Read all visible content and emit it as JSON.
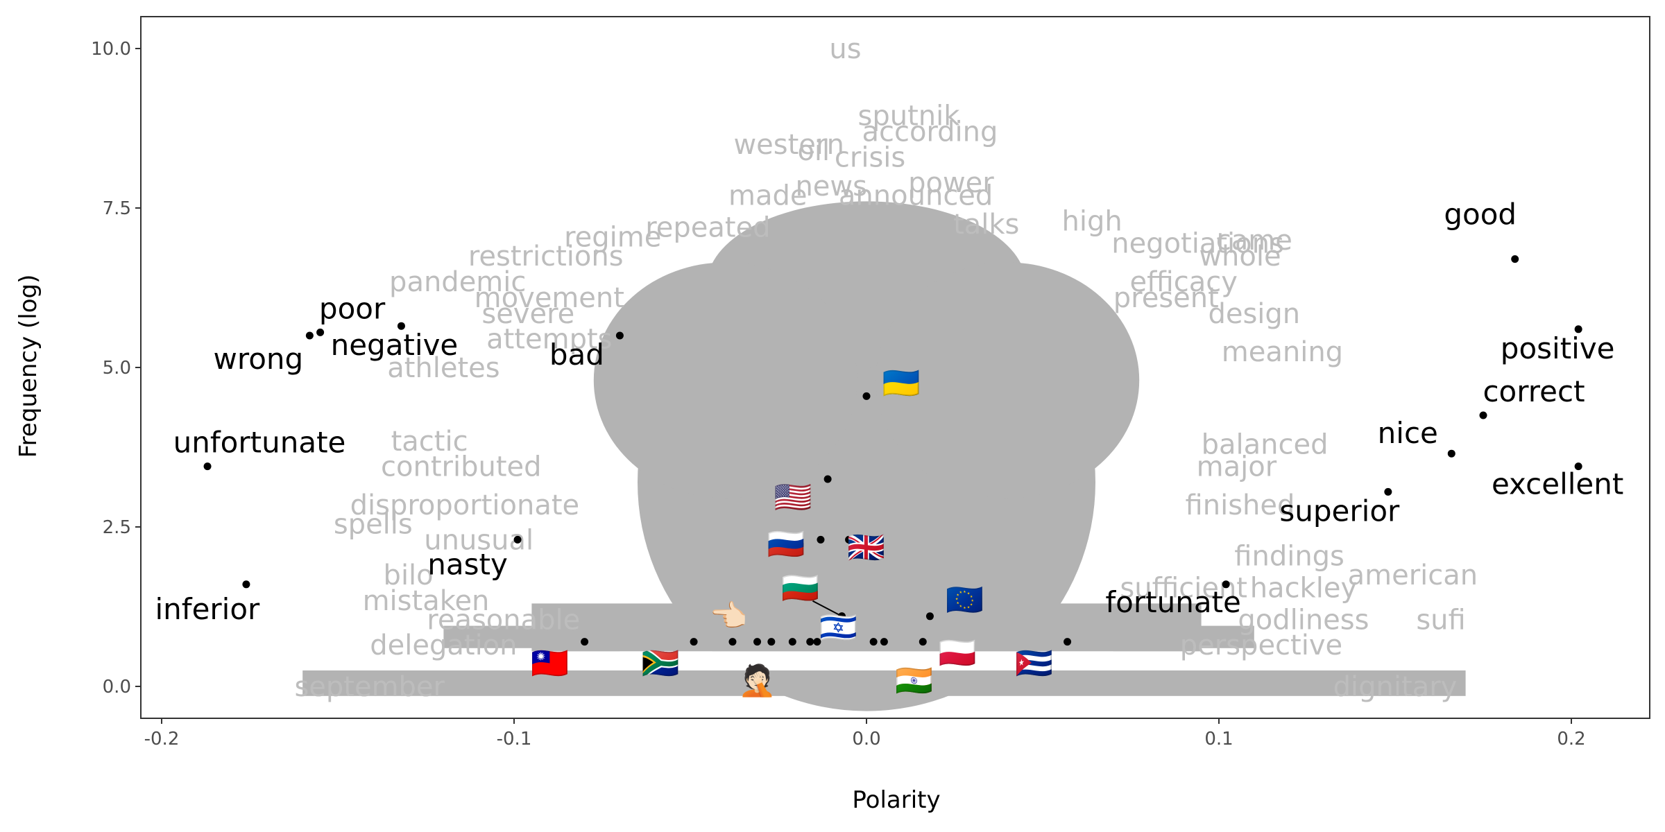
{
  "chart_data": {
    "type": "scatter",
    "xlabel": "Polarity",
    "ylabel": "Frequency (log)",
    "xlim": [
      -0.2,
      0.2
    ],
    "ylim": [
      0,
      10
    ],
    "x_ticks": [
      -0.2,
      -0.1,
      0.0,
      0.1,
      0.2
    ],
    "x_tick_labels": [
      "-0.2",
      "-0.1",
      "0.0",
      "0.1",
      "0.2"
    ],
    "y_ticks": [
      0,
      2.5,
      5,
      7.5,
      10
    ],
    "y_tick_labels": [
      "0.0",
      "2.5",
      "5.0",
      "7.5",
      "10.0"
    ],
    "grid": false,
    "colors": {
      "background_words": "#bdbdbd",
      "key_words": "#000000",
      "points": "#000000",
      "panel_border": "#333333"
    },
    "labeled_points": [
      {
        "label": "good",
        "x": 0.184,
        "y": 6.7
      },
      {
        "label": "positive",
        "x": 0.202,
        "y": 5.6
      },
      {
        "label": "correct",
        "x": 0.175,
        "y": 4.25
      },
      {
        "label": "nice",
        "x": 0.166,
        "y": 3.65
      },
      {
        "label": "excellent",
        "x": 0.202,
        "y": 3.45
      },
      {
        "label": "superior",
        "x": 0.148,
        "y": 3.05
      },
      {
        "label": "fortunate",
        "x": 0.102,
        "y": 1.6
      },
      {
        "label": "poor",
        "x": -0.155,
        "y": 5.55
      },
      {
        "label": "wrong",
        "x": -0.158,
        "y": 5.5
      },
      {
        "label": "negative",
        "x": -0.132,
        "y": 5.65
      },
      {
        "label": "bad",
        "x": -0.07,
        "y": 5.5
      },
      {
        "label": "unfortunate",
        "x": -0.187,
        "y": 3.45
      },
      {
        "label": "nasty",
        "x": -0.099,
        "y": 2.3
      },
      {
        "label": "inferior",
        "x": -0.176,
        "y": 1.6
      }
    ],
    "flag_points": [
      {
        "icon": "🇺🇦",
        "x": 0.0,
        "y": 4.55
      },
      {
        "icon": "🇺🇸",
        "x": -0.011,
        "y": 3.25
      },
      {
        "icon": "🇷🇺",
        "x": -0.013,
        "y": 2.3
      },
      {
        "icon": "🇬🇧",
        "x": -0.005,
        "y": 2.3
      },
      {
        "icon": "🇧🇬",
        "x": -0.007,
        "y": 1.1
      },
      {
        "icon": "🇮🇱",
        "x": -0.007,
        "y": 1.1
      },
      {
        "icon": "🇪🇺",
        "x": 0.018,
        "y": 1.1
      },
      {
        "icon": "🇵🇱",
        "x": 0.016,
        "y": 0.7
      },
      {
        "icon": "🇨🇺",
        "x": 0.057,
        "y": 0.7
      },
      {
        "icon": "🇹🇼",
        "x": -0.08,
        "y": 0.7
      },
      {
        "icon": "🇿🇦",
        "x": -0.049,
        "y": 0.7
      },
      {
        "icon": "👈🏻",
        "x": -0.038,
        "y": 0.7
      },
      {
        "icon": "🤦🏻",
        "x": -0.031,
        "y": 0.7
      },
      {
        "icon": "🇮🇳",
        "x": 0.005,
        "y": 0.7
      }
    ],
    "unlabeled_points": [
      {
        "x": -0.027,
        "y": 0.7
      },
      {
        "x": -0.021,
        "y": 0.7
      },
      {
        "x": -0.016,
        "y": 0.7
      },
      {
        "x": -0.014,
        "y": 0.7
      },
      {
        "x": 0.002,
        "y": 0.7
      }
    ],
    "background_words": [
      {
        "text": "us",
        "x": -0.006,
        "y": 10.0
      },
      {
        "text": "sputnik",
        "x": 0.012,
        "y": 8.95
      },
      {
        "text": "western",
        "x": -0.022,
        "y": 8.5
      },
      {
        "text": "according",
        "x": 0.018,
        "y": 8.7
      },
      {
        "text": "oil",
        "x": -0.015,
        "y": 8.4
      },
      {
        "text": "crisis",
        "x": 0.001,
        "y": 8.3
      },
      {
        "text": "news",
        "x": -0.01,
        "y": 7.85
      },
      {
        "text": "power",
        "x": 0.024,
        "y": 7.9
      },
      {
        "text": "made",
        "x": -0.028,
        "y": 7.7
      },
      {
        "text": "announced",
        "x": 0.014,
        "y": 7.7
      },
      {
        "text": "regime",
        "x": -0.072,
        "y": 7.05
      },
      {
        "text": "repeated",
        "x": -0.045,
        "y": 7.2
      },
      {
        "text": "talks",
        "x": 0.034,
        "y": 7.25
      },
      {
        "text": "high",
        "x": 0.064,
        "y": 7.3
      },
      {
        "text": "negotiations",
        "x": 0.094,
        "y": 6.95
      },
      {
        "text": "came",
        "x": 0.11,
        "y": 7.0
      },
      {
        "text": "restrictions",
        "x": -0.091,
        "y": 6.75
      },
      {
        "text": "whole",
        "x": 0.106,
        "y": 6.75
      },
      {
        "text": "pandemic",
        "x": -0.116,
        "y": 6.35
      },
      {
        "text": "movement",
        "x": -0.09,
        "y": 6.1
      },
      {
        "text": "efficacy",
        "x": 0.09,
        "y": 6.35
      },
      {
        "text": "present",
        "x": 0.085,
        "y": 6.1
      },
      {
        "text": "severe",
        "x": -0.096,
        "y": 5.85
      },
      {
        "text": "design",
        "x": 0.11,
        "y": 5.85
      },
      {
        "text": "attempts",
        "x": -0.09,
        "y": 5.45
      },
      {
        "text": "athletes",
        "x": -0.12,
        "y": 5.0
      },
      {
        "text": "meaning",
        "x": 0.118,
        "y": 5.25
      },
      {
        "text": "tactic",
        "x": -0.124,
        "y": 3.85
      },
      {
        "text": "balanced",
        "x": 0.113,
        "y": 3.8
      },
      {
        "text": "contributed",
        "x": -0.115,
        "y": 3.45
      },
      {
        "text": "major",
        "x": 0.105,
        "y": 3.45
      },
      {
        "text": "disproportionate",
        "x": -0.114,
        "y": 2.85
      },
      {
        "text": "spells",
        "x": -0.14,
        "y": 2.55
      },
      {
        "text": "finished",
        "x": 0.106,
        "y": 2.85
      },
      {
        "text": "unusual",
        "x": -0.11,
        "y": 2.3
      },
      {
        "text": "findings",
        "x": 0.12,
        "y": 2.05
      },
      {
        "text": "bilo",
        "x": -0.13,
        "y": 1.75
      },
      {
        "text": "mistaken",
        "x": -0.125,
        "y": 1.35
      },
      {
        "text": "american",
        "x": 0.155,
        "y": 1.75
      },
      {
        "text": "sufficient",
        "x": 0.09,
        "y": 1.55
      },
      {
        "text": "hackley",
        "x": 0.124,
        "y": 1.55
      },
      {
        "text": "reasonable",
        "x": -0.103,
        "y": 1.05
      },
      {
        "text": "godliness",
        "x": 0.124,
        "y": 1.05
      },
      {
        "text": "sufi",
        "x": 0.163,
        "y": 1.05
      },
      {
        "text": "delegation",
        "x": -0.12,
        "y": 0.65
      },
      {
        "text": "perspective",
        "x": 0.112,
        "y": 0.65
      },
      {
        "text": "september",
        "x": -0.141,
        "y": 0.0
      },
      {
        "text": "dignitary",
        "x": 0.15,
        "y": 0.0
      }
    ]
  }
}
